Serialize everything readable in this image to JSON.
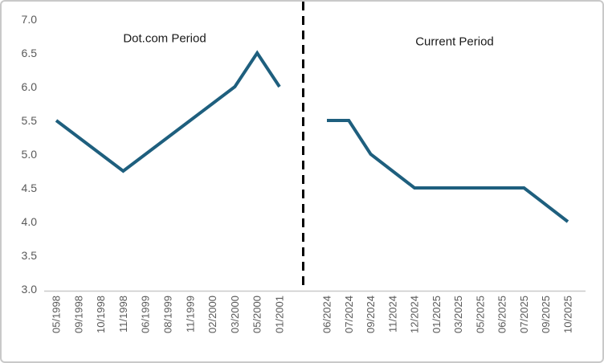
{
  "chart_data": {
    "type": "line",
    "title": "",
    "xlabel": "",
    "ylabel": "",
    "ylim": [
      3.0,
      7.0
    ],
    "ytick_step": 0.5,
    "ytick_labels": [
      "7.0",
      "6.5",
      "6.0",
      "5.5",
      "5.0",
      "4.5",
      "4.0",
      "3.5",
      "3.0"
    ],
    "grid": "off",
    "legend": "none",
    "line_color": "#1e5f7e",
    "divider_color": "#000000",
    "axis_text_color": "#595959",
    "axis_line_color": "#c9c9c9",
    "frame_border_color": "#c9c9c9",
    "divider_style": "dashed vertical line separating the two periods",
    "panels": [
      {
        "label": "Dot.com Period",
        "categories": [
          "05/1998",
          "09/1998",
          "10/1998",
          "11/1998",
          "06/1999",
          "08/1999",
          "11/1999",
          "02/2000",
          "03/2000",
          "05/2000",
          "01/2001"
        ],
        "values": [
          5.5,
          5.25,
          5.0,
          4.75,
          5.0,
          5.25,
          5.5,
          5.75,
          6.0,
          6.5,
          6.0
        ]
      },
      {
        "label": "Current Period",
        "categories": [
          "06/2024",
          "07/2024",
          "09/2024",
          "11/2024",
          "12/2024",
          "01/2025",
          "03/2025",
          "05/2025",
          "06/2025",
          "07/2025",
          "09/2025",
          "10/2025"
        ],
        "values": [
          5.5,
          5.5,
          5.0,
          4.75,
          4.5,
          4.5,
          4.5,
          4.5,
          4.5,
          4.5,
          4.25,
          4.0
        ]
      }
    ]
  }
}
